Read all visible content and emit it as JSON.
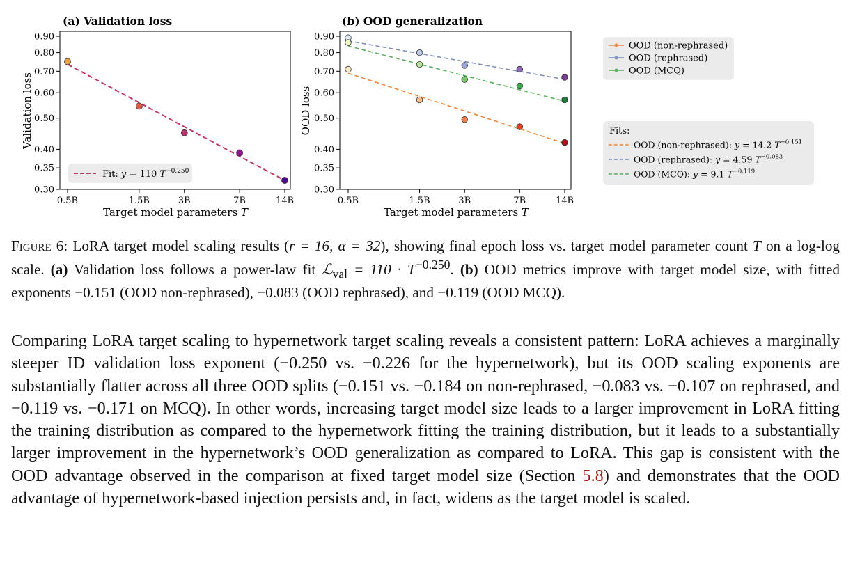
{
  "colors": {
    "fit_a": "#c0396b",
    "non_rephrased": "#f0873a",
    "rephrased": "#8090c0",
    "mcq": "#5ab05e",
    "legend_bg": "#ebebeb",
    "reference": "#a01b1b"
  },
  "chart_data": [
    {
      "type": "scatter",
      "title": "(a) Validation loss",
      "xlabel": "Target model parameters T",
      "ylabel": "Validation loss",
      "xscale": "log",
      "yscale": "log",
      "xlim": [
        0.5,
        14
      ],
      "ylim": [
        0.3,
        0.92
      ],
      "x_ticks": [
        0.5,
        1.5,
        3,
        7,
        14
      ],
      "x_tick_labels": [
        "0.5B",
        "1.5B",
        "3B",
        "7B",
        "14B"
      ],
      "y_ticks": [
        0.3,
        0.35,
        0.4,
        0.5,
        0.6,
        0.7,
        0.8,
        0.9
      ],
      "y_tick_labels": [
        "0.30",
        "0.35",
        "0.40",
        "0.50",
        "0.60",
        "0.70",
        "0.80",
        "0.90"
      ],
      "grid": false,
      "legend_position": "lower-left",
      "points": [
        {
          "x": 0.5,
          "y": 0.75,
          "color": "#f5a24a"
        },
        {
          "x": 1.5,
          "y": 0.545,
          "color": "#e0604c"
        },
        {
          "x": 3,
          "y": 0.45,
          "color": "#bf306c"
        },
        {
          "x": 7,
          "y": 0.39,
          "color": "#8a1b8f"
        },
        {
          "x": 14,
          "y": 0.32,
          "color": "#4a0c8e"
        }
      ],
      "fit": {
        "label": "Fit: y = 110 T^-0.250",
        "a": 110,
        "b": -0.25,
        "scale": 1000000000.0,
        "color": "#c0396b"
      }
    },
    {
      "type": "scatter",
      "title": "(b) OOD generalization",
      "xlabel": "Target model parameters T",
      "ylabel": "OOD loss",
      "xscale": "log",
      "yscale": "log",
      "xlim": [
        0.5,
        14
      ],
      "ylim": [
        0.3,
        0.92
      ],
      "x_ticks": [
        0.5,
        1.5,
        3,
        7,
        14
      ],
      "x_tick_labels": [
        "0.5B",
        "1.5B",
        "3B",
        "7B",
        "14B"
      ],
      "y_ticks": [
        0.3,
        0.35,
        0.4,
        0.5,
        0.6,
        0.7,
        0.8,
        0.9
      ],
      "y_tick_labels": [
        "0.30",
        "0.35",
        "0.40",
        "0.50",
        "0.60",
        "0.70",
        "0.80",
        "0.90"
      ],
      "grid": false,
      "series": [
        {
          "name": "OOD (non-rephrased)",
          "color": "#f0873a",
          "x": [
            0.5,
            1.5,
            3,
            7,
            14
          ],
          "y": [
            0.71,
            0.57,
            0.495,
            0.47,
            0.42
          ],
          "point_colors": [
            "#fde8c8",
            "#fcbf90",
            "#f08050",
            "#e0442c",
            "#b0131c"
          ],
          "fit": {
            "label": "OOD (non-rephrased): y = 14.2 T^-0.151",
            "a": 14.2,
            "b": -0.151,
            "scale": 1000000000.0
          }
        },
        {
          "name": "OOD (rephrased)",
          "color": "#8090c0",
          "x": [
            0.5,
            1.5,
            3,
            7,
            14
          ],
          "y": [
            0.89,
            0.8,
            0.73,
            0.71,
            0.67
          ],
          "point_colors": [
            "#e4ecf7",
            "#b8c6e4",
            "#9aa4d4",
            "#8a6ab4",
            "#7a3a94"
          ],
          "fit": {
            "label": "OOD (rephrased): y = 4.59 T^-0.083",
            "a": 4.59,
            "b": -0.083,
            "scale": 1000000000.0
          }
        },
        {
          "name": "OOD (MCQ)",
          "color": "#5ab05e",
          "x": [
            0.5,
            1.5,
            3,
            7,
            14
          ],
          "y": [
            0.86,
            0.735,
            0.66,
            0.63,
            0.57
          ],
          "point_colors": [
            "#f2f7c8",
            "#b8e09c",
            "#7cc46c",
            "#3ea84e",
            "#1a7a3a"
          ],
          "fit": {
            "label": "OOD (MCQ): y = 9.1 T^-0.119",
            "a": 9.1,
            "b": -0.119,
            "scale": 1000000000.0
          }
        }
      ],
      "legend_title": "Fits:",
      "legend_position": "right"
    }
  ],
  "caption": {
    "label": "Figure 6:",
    "text_1": " LoRA target model scaling results (",
    "math_1": "r = 16, α = 32",
    "text_2": "), showing final epoch loss vs. target model parameter count ",
    "math_2": "T",
    "text_3": " on a log-log scale. ",
    "bold_a": "(a)",
    "text_4": " Validation loss follows a power-law fit ",
    "math_3": "ℒ",
    "math_3_sub": "val",
    "math_3_rest": " = 110 · T",
    "math_3_sup": "−0.250",
    "text_5": ". ",
    "bold_b": "(b)",
    "text_6": " OOD metrics improve with target model size, with fitted exponents −0.151 (OOD non-rephrased), −0.083 (OOD rephrased), and −0.119 (OOD MCQ)."
  },
  "body": {
    "text_1": "Comparing LoRA target scaling to hypernetwork target scaling reveals a consistent pattern: LoRA achieves a marginally steeper ID validation loss exponent (−0.250 vs. −0.226 for the hypernetwork), but its OOD scaling exponents are substantially flatter across all three OOD splits (−0.151 vs. −0.184 on non-rephrased, −0.083 vs. −0.107 on rephrased, and −0.119 vs. −0.171 on MCQ). In other words, increasing target model size leads to a larger improvement in LoRA fitting the training distribution as compared to the hypernetwork fitting the training distribution, but it leads to a substantially larger improvement in the hypernetwork’s OOD generalization as compared to LoRA. This gap is consistent with the OOD advantage observed in the comparison at fixed target model size (Section ",
    "ref": "5.8",
    "text_2": ") and demonstrates that the OOD advantage of hypernetwork-based injection persists and, in fact, widens as the target model is scaled."
  }
}
